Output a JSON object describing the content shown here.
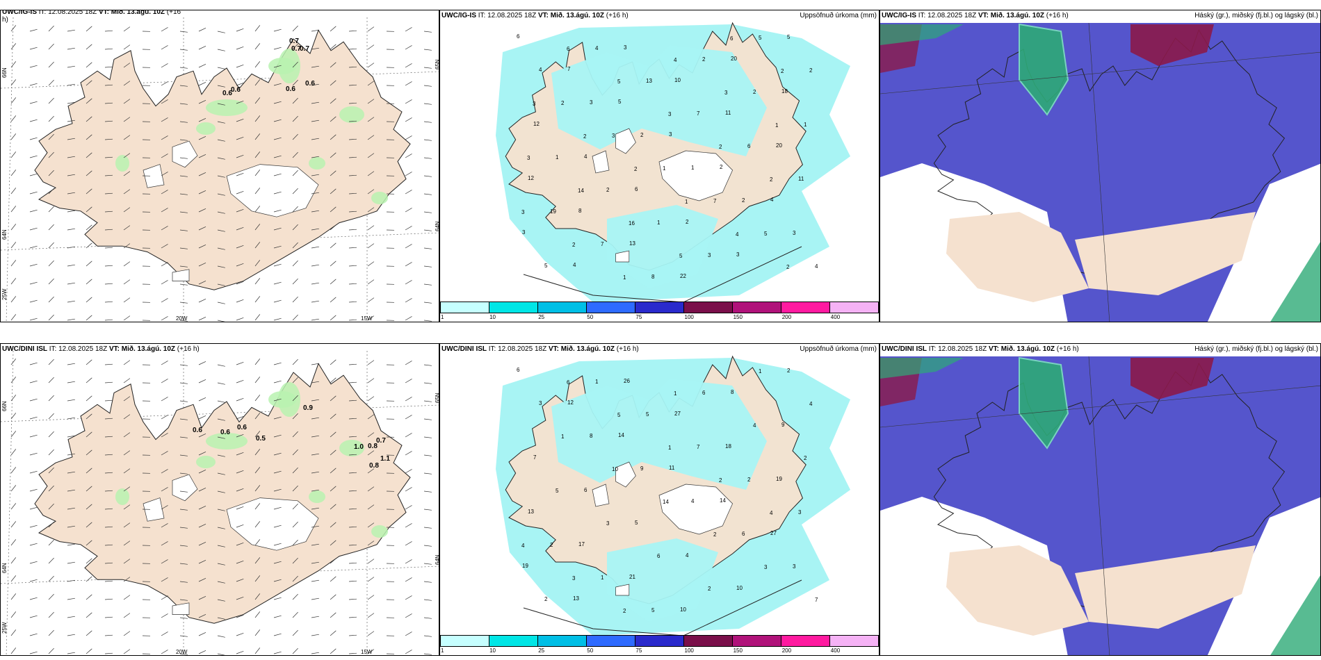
{
  "rows": [
    {
      "wind": {
        "title_model": "UWC/IG-IS",
        "title_it": "IT: 12.08.2025 18Z",
        "title_vt": "VT: Mið. 13.ágú. 10Z",
        "title_lead": "(+16",
        "title_lead2": "h)",
        "values": [
          "0.7",
          "0.7",
          "0.7",
          "0.6",
          "0.6",
          "0.6",
          "0.6"
        ],
        "lat_labels": [
          "66N",
          "64N",
          "25W"
        ],
        "lon_labels": [
          "20W",
          "15W"
        ]
      },
      "precip": {
        "title_model": "UWC/IG-IS",
        "title_it": "IT: 12.08.2025 18Z",
        "title_vt": "VT: Mið. 13.ágú. 10Z",
        "title_lead": "(+16 h)",
        "title_right": "Uppsöfnuð úrkoma (mm)",
        "lat_labels": [
          "65N",
          "64N"
        ],
        "values": [
          "6",
          "7",
          "5",
          "3",
          "2",
          "4",
          "3",
          "4",
          "3",
          "10",
          "11",
          "20",
          "12",
          "8",
          "13",
          "22",
          "20",
          "18",
          "12",
          "4",
          "6",
          "2",
          "3",
          "5",
          "4",
          "3",
          "2",
          "1",
          "2",
          "3",
          "5",
          "4",
          "13",
          "7",
          "6",
          "11",
          "19",
          "7",
          "8",
          "2",
          "2",
          "1",
          "1",
          "2",
          "1",
          "3",
          "5",
          "2",
          "2",
          "3",
          "1",
          "7",
          "5",
          "4",
          "6",
          "5",
          "3",
          "2",
          "2",
          "3",
          "2",
          "1",
          "4",
          "3",
          "1",
          "3",
          "14",
          "16",
          "5",
          "6",
          "2",
          "3",
          "2",
          "2",
          "1",
          "4",
          "2"
        ]
      },
      "cloud": {
        "title_model": "UWC/IG-IS",
        "title_it": "IT: 12.08.2025 18Z",
        "title_vt": "VT: Mið. 13.ágú. 10Z",
        "title_lead": "(+16 h)",
        "title_right": "Háský (gr.), miðský (fj.bl.) og lágský (bl.)"
      }
    },
    {
      "wind": {
        "title_model": "UWC/DINI ISL",
        "title_it": "IT: 12.08.2025 18Z",
        "title_vt": "VT: Mið. 13.ágú. 10Z",
        "title_lead": "(+16 h)",
        "values": [
          "0.9",
          "0.6",
          "0.6",
          "0.6",
          "0.5",
          "1.0",
          "0.8",
          "0.7",
          "1.1",
          "0.8"
        ],
        "lat_labels": [
          "66N",
          "64N",
          "25W"
        ],
        "lon_labels": [
          "20W",
          "15W"
        ]
      },
      "precip": {
        "title_model": "UWC/DINI ISL",
        "title_it": "IT: 12.08.2025 18Z",
        "title_vt": "VT: Mið. 13.ágú. 10Z",
        "title_lead": "(+16 h)",
        "title_right": "Uppsöfnuð úrkoma (mm)",
        "lat_labels": [
          "65N",
          "64N"
        ],
        "values": [
          "6",
          "12",
          "14",
          "11",
          "14",
          "27",
          "19",
          "13",
          "26",
          "27",
          "18",
          "19",
          "13",
          "17",
          "21",
          "10",
          "8",
          "9",
          "7",
          "6",
          "5",
          "4",
          "10",
          "2",
          "3",
          "8",
          "9",
          "4",
          "6",
          "3",
          "2",
          "1",
          "5",
          "7",
          "2",
          "3",
          "2",
          "1",
          "5",
          "6",
          "4",
          "2",
          "5",
          "3",
          "6",
          "2",
          "1",
          "4",
          "1",
          "10",
          "14",
          "2",
          "3",
          "7",
          "6",
          "5",
          "1",
          "2",
          "4",
          "4",
          "3",
          "2",
          "1"
        ]
      },
      "cloud": {
        "title_model": "UWC/DINI ISL",
        "title_it": "IT: 12.08.2025 18Z",
        "title_vt": "VT: Mið. 13.ágú. 10Z",
        "title_lead": "(+16 h)",
        "title_right": "Háský (gr.), miðský (fj.bl.) og lágský (bl.)"
      }
    }
  ],
  "colorbar": {
    "colors": [
      "#c6ffff",
      "#00e6e6",
      "#00bfe6",
      "#2e6bff",
      "#2a2acc",
      "#7a0f4a",
      "#b0127a",
      "#ff1aa0",
      "#f5b2f5"
    ],
    "ticks": [
      "1",
      "10",
      "25",
      "50",
      "75",
      "100",
      "150",
      "200",
      "400"
    ]
  },
  "palette": {
    "land": "#f5e1cf",
    "precip": "#a8f4f4",
    "wind_precip": "#b9f2b0",
    "cloud_low": "#5555cc",
    "cloud_high": "#8b1a4a",
    "cloud_mid": "#2eaa77"
  }
}
